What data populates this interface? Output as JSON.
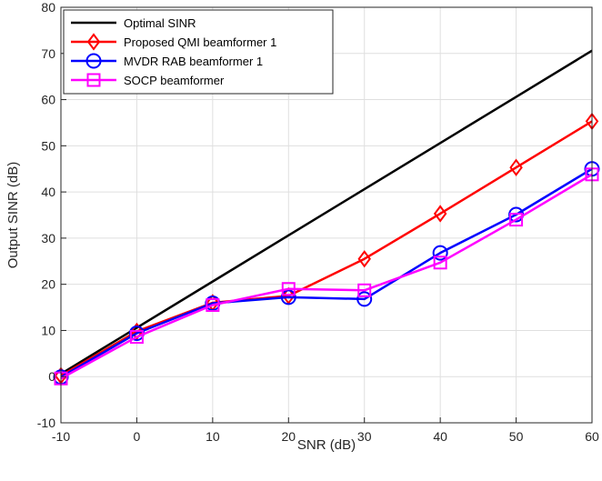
{
  "chart_data": {
    "type": "line",
    "title": "",
    "xlabel": "SNR (dB)",
    "ylabel": "Output SINR (dB)",
    "xlim": [
      -10,
      60
    ],
    "ylim": [
      -10,
      80
    ],
    "x_ticks": [
      "-10",
      "0",
      "10",
      "20",
      "30",
      "40",
      "50",
      "60"
    ],
    "y_ticks": [
      "-10",
      "0",
      "10",
      "20",
      "30",
      "40",
      "50",
      "60",
      "70",
      "80"
    ],
    "grid": true,
    "legend_position": "top-left",
    "x": [
      -10,
      0,
      10,
      20,
      30,
      40,
      50,
      60
    ],
    "series": [
      {
        "name": "Optimal SINR",
        "color": "#000000",
        "marker": "none",
        "values": [
          0.6,
          10.6,
          20.6,
          30.6,
          40.6,
          50.6,
          60.6,
          70.6
        ]
      },
      {
        "name": "Proposed QMI beamformer 1",
        "color": "#ff0000",
        "marker": "diamond",
        "values": [
          0.2,
          9.8,
          16.0,
          17.5,
          25.5,
          35.3,
          45.3,
          55.3
        ]
      },
      {
        "name": "MVDR RAB beamformer 1",
        "color": "#0000ff",
        "marker": "circle",
        "values": [
          -0.1,
          9.4,
          15.9,
          17.2,
          16.8,
          26.8,
          35.1,
          45.0
        ]
      },
      {
        "name": "SOCP beamformer",
        "color": "#ff00ff",
        "marker": "square",
        "values": [
          -0.4,
          8.6,
          15.5,
          19.0,
          18.7,
          24.7,
          34.0,
          43.8
        ]
      }
    ]
  }
}
